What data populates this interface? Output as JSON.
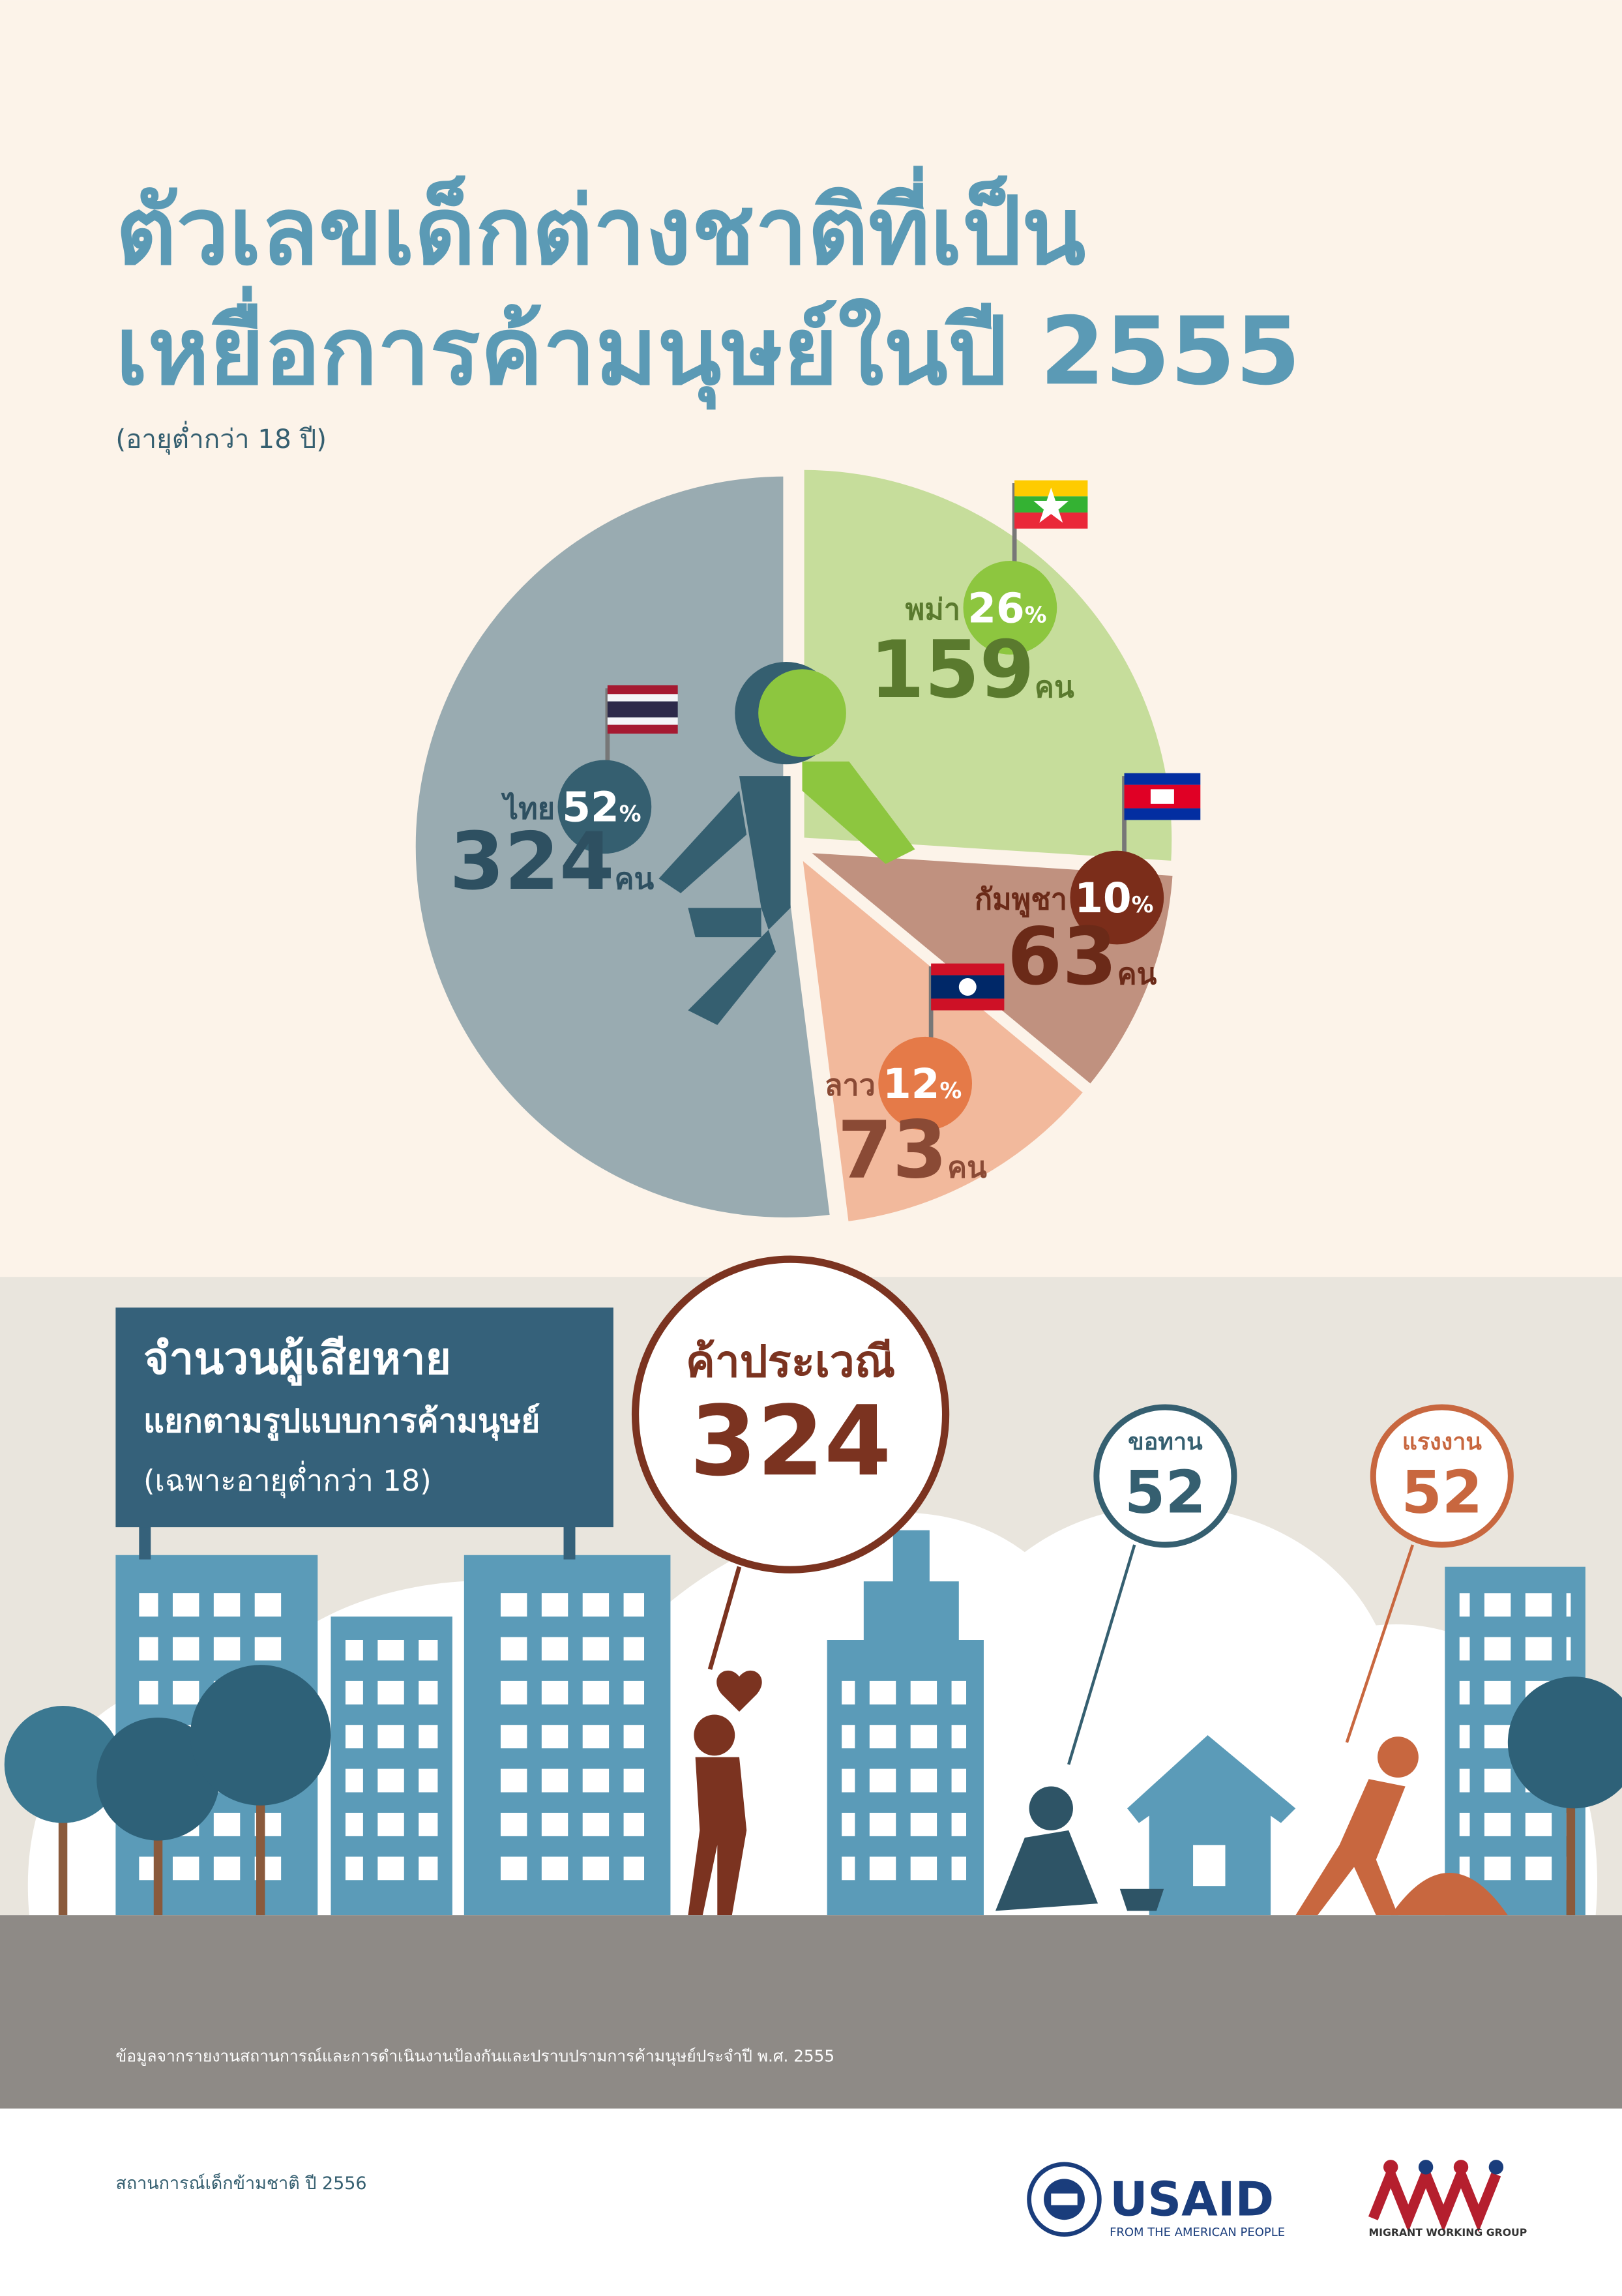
{
  "header": {
    "title_line1": "ตัวเลขเด็กต่างชาติที่เป็น",
    "title_line2": "เหยื่อการค้ามนุษย์ในปี 2555",
    "subtitle": "(อายุต่ำกว่า 18 ปี)"
  },
  "chart_data": {
    "type": "pie",
    "categories": [
      "พม่า",
      "กัมพูชา",
      "ลาว",
      "ไทย"
    ],
    "values": [
      26,
      10,
      12,
      52
    ],
    "percent_unit": "%",
    "counts": [
      159,
      63,
      73,
      324
    ],
    "count_unit": "คน",
    "colors": [
      "#c6dd9b",
      "#c0917f",
      "#f2b99c",
      "#99abb1"
    ]
  },
  "victims": {
    "title": "จำนวนผู้เสียหาย",
    "subtitle": "แยกตามรูปแบบการค้ามนุษย์",
    "note": "(เฉพาะอายุต่ำกว่า 18)",
    "types": [
      {
        "label": "ค้าประเวณี",
        "count": "324"
      },
      {
        "label": "ขอทาน",
        "count": "52"
      },
      {
        "label": "แรงงาน",
        "count": "52"
      }
    ],
    "source": "ข้อมูลจากรายงานสถานการณ์และการดำเนินงานป้องกันและปราบปรามการค้ามนุษย์ประจำปี พ.ศ. 2555"
  },
  "footer": {
    "series_title": "สถานการณ์เด็กข้ามชาติ ปี 2556",
    "usaid": "USAID",
    "usaid_tagline": "FROM THE AMERICAN PEOPLE",
    "mwg": "MIGRANT WORKING GROUP"
  }
}
